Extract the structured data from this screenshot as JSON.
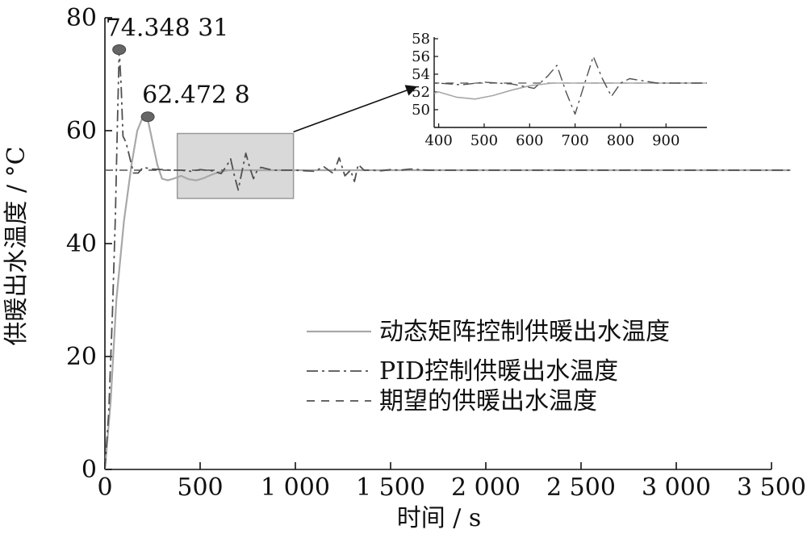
{
  "chart_data": {
    "type": "line",
    "xlabel": "时间 / s",
    "ylabel": "供暖出水温度 / °C",
    "xlim": [
      0,
      3500
    ],
    "ylim": [
      0,
      80
    ],
    "x_ticks": [
      0,
      500,
      1000,
      1500,
      2000,
      2500,
      3000,
      3500
    ],
    "x_tick_labels": [
      "0",
      "500",
      "1 000",
      "1 500",
      "2 000",
      "2 500",
      "3 000",
      "3 500"
    ],
    "y_ticks": [
      0,
      20,
      40,
      60,
      80
    ],
    "y_tick_labels": [
      "0",
      "20",
      "40",
      "60",
      "80"
    ],
    "grid": false,
    "legend_position": "lower-right",
    "series": [
      {
        "name": "动态矩阵控制供暖出水温度",
        "style": "solid",
        "color": "#a8a8a8",
        "x": [
          0,
          30,
          60,
          100,
          140,
          170,
          200,
          225,
          250,
          275,
          300,
          330,
          360,
          400,
          440,
          480,
          520,
          560,
          600,
          650,
          700,
          800,
          900,
          1000,
          1500,
          2000,
          2500,
          3000,
          3600
        ],
        "y": [
          0,
          12,
          30,
          44,
          54,
          60,
          62.47,
          62.0,
          58,
          54,
          51.5,
          51.2,
          51.5,
          52.0,
          51.4,
          51.2,
          51.6,
          52.2,
          52.7,
          53.0,
          53.0,
          53.0,
          53.0,
          53.0,
          53.0,
          53.0,
          53.0,
          53.0,
          53.0
        ]
      },
      {
        "name": "PID控制供暖出水温度",
        "style": "dashdot",
        "color": "#505050",
        "x": [
          0,
          20,
          40,
          55,
          65,
          75,
          85,
          95,
          110,
          125,
          150,
          175,
          200,
          250,
          300,
          350,
          400,
          450,
          500,
          560,
          610,
          640,
          660,
          680,
          700,
          720,
          740,
          760,
          780,
          800,
          820,
          880,
          960,
          1000,
          1100,
          1150,
          1200,
          1230,
          1260,
          1290,
          1310,
          1330,
          1360,
          1400,
          1450,
          1500,
          1550,
          1600,
          1700,
          1800,
          2000,
          2500,
          3000,
          3600
        ],
        "y": [
          0,
          10,
          28,
          45,
          60,
          74.35,
          68,
          59,
          58,
          56,
          52.5,
          52.5,
          53.5,
          53.2,
          53.1,
          53.0,
          53.0,
          52.8,
          53.1,
          52.9,
          52.4,
          53.8,
          55.0,
          52.0,
          49.5,
          52.8,
          56.0,
          53.5,
          51.5,
          53.0,
          53.5,
          53.0,
          53.0,
          53.0,
          52.8,
          53.6,
          52.4,
          55.2,
          52.0,
          53.0,
          51.0,
          54.0,
          53.0,
          53.0,
          52.9,
          53.1,
          53.0,
          53.2,
          53.0,
          53.0,
          53.0,
          53.0,
          53.0,
          53.0
        ]
      },
      {
        "name": "期望的供暖出水温度",
        "style": "dashed",
        "color": "#505050",
        "x": [
          0,
          3600
        ],
        "y": [
          53,
          53
        ]
      }
    ],
    "annotations": [
      {
        "text": "74.348 31",
        "x": 75,
        "y": 74.35
      },
      {
        "text": "62.472 8",
        "x": 225,
        "y": 62.47
      }
    ],
    "inset": {
      "source_xlim": [
        380,
        990
      ],
      "source_ylim": [
        48,
        59.5
      ],
      "xlim": [
        390,
        990
      ],
      "ylim": [
        48,
        58
      ],
      "x_ticks": [
        400,
        500,
        600,
        700,
        800,
        900
      ],
      "x_tick_labels": [
        "400",
        "500",
        "600",
        "700",
        "800",
        "900"
      ],
      "y_ticks": [
        50,
        52,
        54,
        56,
        58
      ],
      "y_tick_labels": [
        "50",
        "52",
        "54",
        "56",
        "58"
      ]
    }
  }
}
